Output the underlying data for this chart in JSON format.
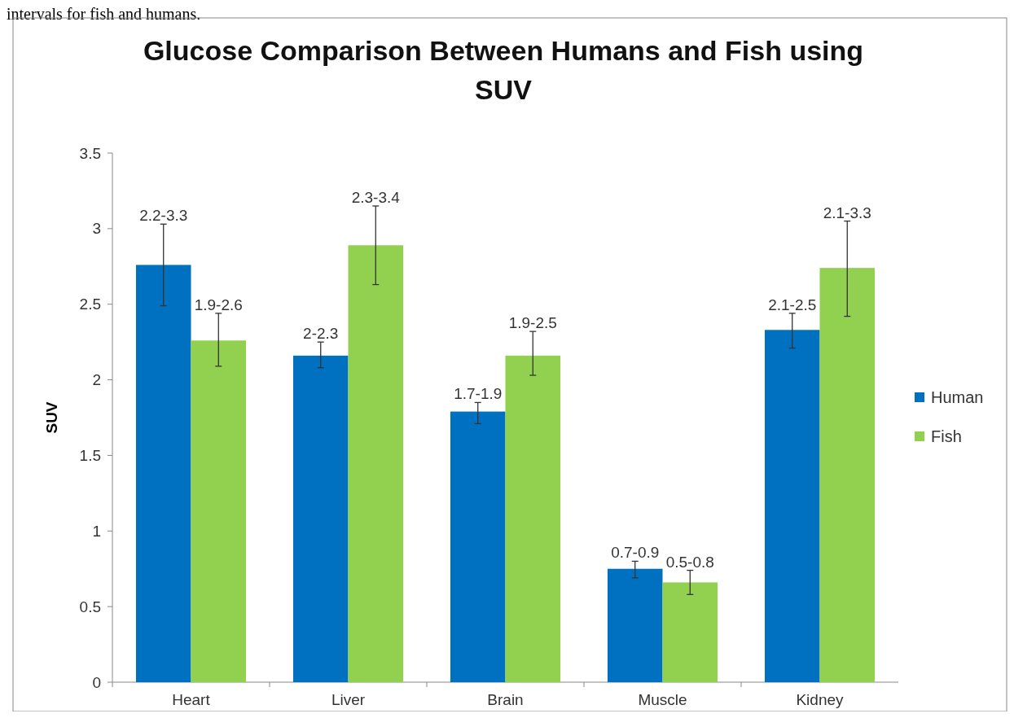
{
  "chart_data": {
    "type": "bar",
    "title": "Glucose Comparison Between Humans and Fish using SUV",
    "ylabel": "SUV",
    "annotations": [
      "intervals for fish and humans."
    ],
    "categories": [
      "Heart",
      "Liver",
      "Brain",
      "Muscle",
      "Kidney"
    ],
    "series": [
      {
        "name": "Human",
        "color": "#0070c0",
        "values": [
          2.76,
          2.16,
          1.79,
          0.75,
          2.33
        ],
        "errors": [
          [
            2.49,
            3.03
          ],
          [
            2.08,
            2.25
          ],
          [
            1.71,
            1.85
          ],
          [
            0.69,
            0.8
          ],
          [
            2.21,
            2.44
          ]
        ],
        "value_labels": [
          "2.2-3.3",
          "2-2.3",
          "1.7-1.9",
          "0.7-0.9",
          "2.1-2.5"
        ]
      },
      {
        "name": "Fish",
        "color": "#92d050",
        "values": [
          2.26,
          2.89,
          2.16,
          0.66,
          2.74
        ],
        "errors": [
          [
            2.09,
            2.44
          ],
          [
            2.63,
            3.15
          ],
          [
            2.03,
            2.32
          ],
          [
            0.58,
            0.74
          ],
          [
            2.42,
            3.05
          ]
        ],
        "value_labels": [
          "1.9-2.6",
          "2.3-3.4",
          "1.9-2.5",
          "0.5-0.8",
          "2.1-3.3"
        ]
      }
    ],
    "ylim": [
      0,
      3.5
    ],
    "yticks": [
      0,
      0.5,
      1,
      1.5,
      2,
      2.5,
      3,
      3.5
    ],
    "grid": false,
    "legend": "right"
  }
}
